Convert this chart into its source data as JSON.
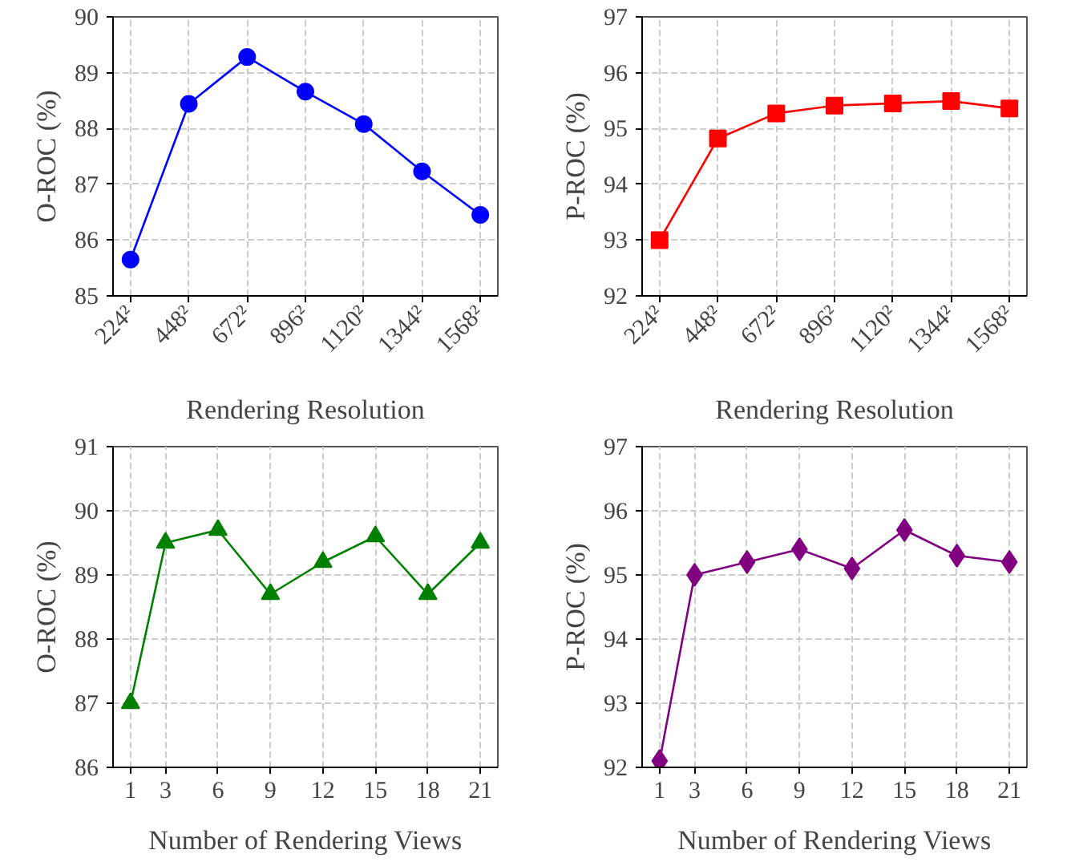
{
  "chart_data": [
    {
      "type": "line",
      "xlabel": "Rendering Resolution",
      "ylabel": "O-ROC (%)",
      "categories": [
        "224²",
        "448²",
        "672²",
        "896²",
        "1120²",
        "1344²",
        "1568²"
      ],
      "series": [
        {
          "color": "#0000ff",
          "values": [
            85.65,
            88.44,
            89.28,
            88.66,
            88.08,
            87.23,
            86.45
          ]
        }
      ],
      "ylim": [
        85,
        90
      ],
      "yticks": [
        85,
        86,
        87,
        88,
        89,
        90
      ],
      "grid": true,
      "marker": "circle",
      "line_style": "solid"
    },
    {
      "type": "line",
      "xlabel": "Rendering Resolution",
      "ylabel": "P-ROC (%)",
      "categories": [
        "224²",
        "448²",
        "672²",
        "896²",
        "1120²",
        "1344²",
        "1568²"
      ],
      "series": [
        {
          "color": "#ff0000",
          "values": [
            93.0,
            94.82,
            95.27,
            95.41,
            95.45,
            95.49,
            95.36
          ]
        }
      ],
      "ylim": [
        92,
        97
      ],
      "yticks": [
        92,
        93,
        94,
        95,
        96,
        97
      ],
      "grid": true,
      "marker": "square",
      "line_style": "solid"
    },
    {
      "type": "line",
      "xlabel": "Number of Rendering Views",
      "ylabel": "O-ROC (%)",
      "x": [
        1,
        3,
        6,
        9,
        12,
        15,
        18,
        21
      ],
      "series": [
        {
          "color": "#008000",
          "values": [
            87.0,
            89.5,
            89.7,
            88.7,
            89.2,
            89.6,
            88.7,
            89.5
          ]
        }
      ],
      "xlim": [
        0,
        22
      ],
      "xticks": [
        1,
        3,
        6,
        9,
        12,
        15,
        18,
        21
      ],
      "ylim": [
        86,
        91
      ],
      "yticks": [
        86,
        87,
        88,
        89,
        90,
        91
      ],
      "grid": true,
      "marker": "triangle",
      "line_style": "solid"
    },
    {
      "type": "line",
      "xlabel": "Number of Rendering Views",
      "ylabel": "P-ROC (%)",
      "x": [
        1,
        3,
        6,
        9,
        12,
        15,
        18,
        21
      ],
      "series": [
        {
          "color": "#800080",
          "values": [
            92.1,
            95.0,
            95.2,
            95.4,
            95.1,
            95.7,
            95.3,
            95.2
          ]
        }
      ],
      "xlim": [
        0,
        22
      ],
      "xticks": [
        1,
        3,
        6,
        9,
        12,
        15,
        18,
        21
      ],
      "ylim": [
        92,
        97
      ],
      "yticks": [
        92,
        93,
        94,
        95,
        96,
        97
      ],
      "grid": true,
      "marker": "diamond",
      "line_style": "solid"
    }
  ]
}
